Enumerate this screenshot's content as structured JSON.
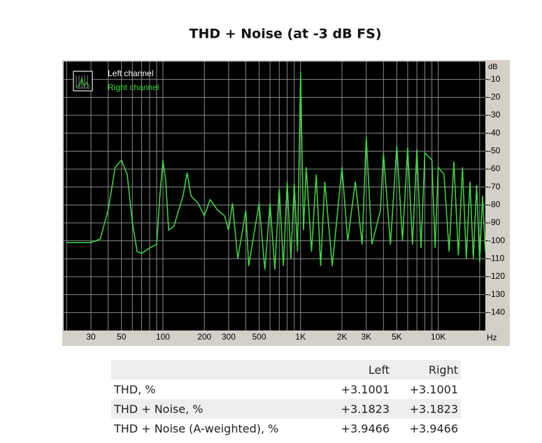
{
  "chart_data": {
    "type": "line",
    "title": "THD + Noise (at -3 dB FS)",
    "xlabel": "Hz",
    "ylabel": "dB",
    "xscale": "log",
    "xlim": [
      19,
      22000
    ],
    "ylim": [
      -150,
      0
    ],
    "xticks": [
      30,
      50,
      100,
      200,
      300,
      500,
      {
        "value": 1000,
        "label": "1K"
      },
      {
        "value": 2000,
        "label": "2K"
      },
      {
        "value": 3000,
        "label": "3K"
      },
      {
        "value": 5000,
        "label": "5K"
      },
      {
        "value": 10000,
        "label": "10K"
      }
    ],
    "xgrid_minor": [
      20,
      40,
      60,
      70,
      80,
      90,
      400,
      600,
      700,
      800,
      900,
      4000,
      6000,
      7000,
      8000,
      9000,
      20000
    ],
    "yticks": [
      -10,
      -20,
      -30,
      -40,
      -50,
      -60,
      -70,
      -80,
      -90,
      -100,
      -110,
      -120,
      -130,
      -140
    ],
    "grid": true,
    "legend": "top-left",
    "x": [
      20,
      30,
      35,
      40,
      45,
      50,
      55,
      60,
      65,
      70,
      80,
      90,
      95,
      100,
      105,
      110,
      120,
      140,
      150,
      160,
      180,
      200,
      220,
      250,
      280,
      300,
      320,
      350,
      400,
      420,
      500,
      550,
      600,
      650,
      700,
      750,
      800,
      850,
      900,
      950,
      1000,
      1050,
      1100,
      1200,
      1300,
      1400,
      1500,
      1700,
      2000,
      2200,
      2500,
      2800,
      3000,
      3300,
      3800,
      4000,
      4500,
      5000,
      5500,
      6000,
      6500,
      7000,
      7500,
      8000,
      9000,
      9500,
      10000,
      11000,
      12000,
      13000,
      14000,
      15000,
      16000,
      17000,
      18000,
      19000,
      20000,
      21000,
      22000
    ],
    "series": [
      {
        "name": "Left channel",
        "color": "#ffffff",
        "values": [
          -101,
          -101,
          -99,
          -83,
          -59,
          -55,
          -63,
          -90,
          -106,
          -107,
          -104,
          -102,
          -75,
          -55,
          -67,
          -94,
          -92,
          -75,
          -62,
          -75,
          -79,
          -86,
          -77,
          -83,
          -86,
          -94,
          -79,
          -110,
          -83,
          -114,
          -79,
          -116,
          -79,
          -116,
          -71,
          -114,
          -67,
          -110,
          -68,
          -106,
          -6,
          -94,
          -59,
          -106,
          -63,
          -114,
          -67,
          -114,
          -59,
          -100,
          -67,
          -102,
          -42,
          -102,
          -83,
          -51,
          -102,
          -47,
          -100,
          -48,
          -102,
          -49,
          -104,
          -51,
          -55,
          -104,
          -59,
          -63,
          -106,
          -56,
          -108,
          -59,
          -110,
          -67,
          -110,
          -69,
          -112,
          -75,
          -106
        ]
      },
      {
        "name": "Right channel",
        "color": "#2edb2e",
        "values": [
          -101,
          -101,
          -99,
          -83,
          -59,
          -55,
          -63,
          -90,
          -106,
          -107,
          -104,
          -102,
          -75,
          -55,
          -67,
          -94,
          -92,
          -75,
          -62,
          -75,
          -79,
          -86,
          -77,
          -83,
          -86,
          -94,
          -79,
          -110,
          -83,
          -114,
          -79,
          -116,
          -79,
          -116,
          -71,
          -114,
          -67,
          -110,
          -68,
          -106,
          -6,
          -94,
          -59,
          -106,
          -63,
          -114,
          -67,
          -114,
          -59,
          -100,
          -67,
          -102,
          -42,
          -102,
          -83,
          -51,
          -102,
          -47,
          -100,
          -48,
          -102,
          -49,
          -104,
          -51,
          -55,
          -104,
          -59,
          -63,
          -106,
          -56,
          -108,
          -59,
          -110,
          -67,
          -110,
          -69,
          -112,
          -75,
          -106
        ]
      }
    ]
  },
  "table": {
    "header": [
      "Left",
      "Right"
    ],
    "rows": [
      [
        "THD, %",
        "+3.1001",
        "+3.1001"
      ],
      [
        "THD + Noise, %",
        "+3.1823",
        "+3.1823"
      ],
      [
        "THD + Noise (A-weighted), %",
        "+3.9466",
        "+3.9466"
      ]
    ]
  }
}
